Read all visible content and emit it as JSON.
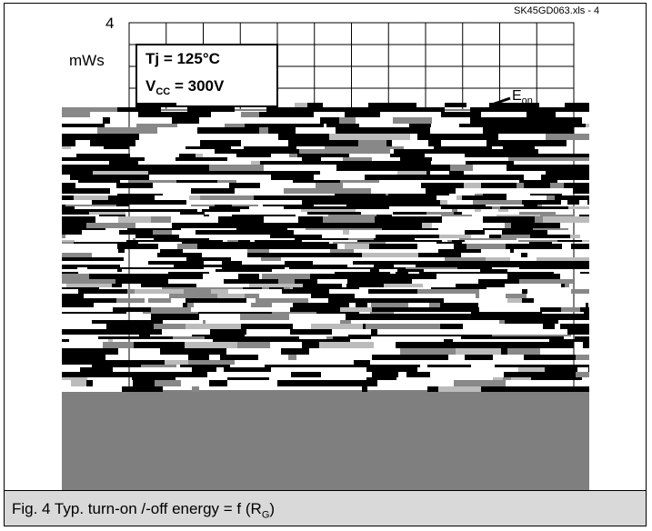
{
  "chart_data": {
    "type": "line",
    "title": "",
    "file_label": "SK45GD063.xls - 4",
    "y_tick_top": "4",
    "y_unit": "mWs",
    "conditions": {
      "tj": "Tj = 125°C",
      "vcc_prefix": "V",
      "vcc_sub": "CC",
      "vcc_suffix": " = 300V"
    },
    "series": [
      {
        "name": "Eon"
      }
    ],
    "grid": true,
    "caption_main": "Fig. 4 Typ. turn-on /-off energy = f (R",
    "caption_sub": "G",
    "caption_end": ")"
  },
  "colors": {
    "grey_block": "#7f7f7f",
    "caption_bg": "#d9d9d9"
  }
}
